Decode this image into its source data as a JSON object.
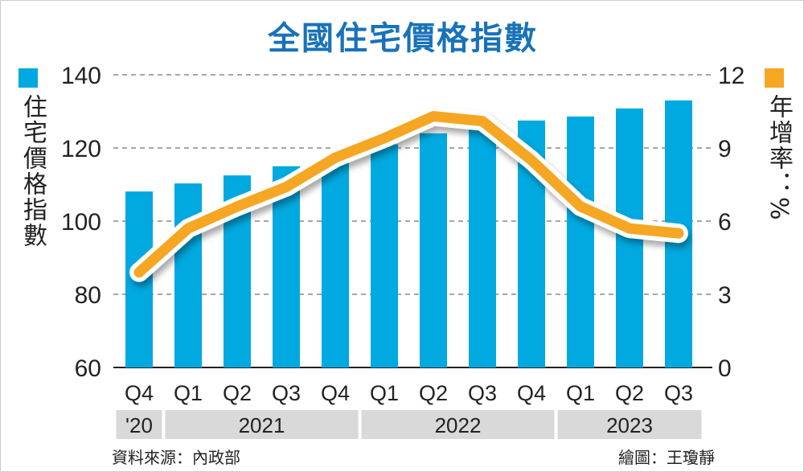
{
  "chart_data": {
    "type": "bar+line",
    "title": "全國住宅價格指數",
    "categories": [
      "Q4",
      "Q1",
      "Q2",
      "Q3",
      "Q4",
      "Q1",
      "Q2",
      "Q3",
      "Q4",
      "Q1",
      "Q2",
      "Q3"
    ],
    "years": [
      {
        "label": "'20",
        "span": 1
      },
      {
        "label": "2021",
        "span": 4
      },
      {
        "label": "2022",
        "span": 4
      },
      {
        "label": "2023",
        "span": 3
      }
    ],
    "series": [
      {
        "name": "住宅價格指數",
        "type": "bar",
        "axis": "left",
        "color": "#00a9e0",
        "values": [
          108.1,
          110.3,
          112.5,
          115,
          118,
          121,
          124,
          125.5,
          127.5,
          128.6,
          130.8,
          133
        ]
      },
      {
        "name": "年增率：%",
        "type": "line",
        "axis": "right",
        "color": "#f5a623",
        "values": [
          3.9,
          5.7,
          6.6,
          7.4,
          8.6,
          9.4,
          10.3,
          10.1,
          8.5,
          6.6,
          5.7,
          5.5
        ]
      }
    ],
    "left_axis": {
      "label": "住宅價格指數",
      "ylim": [
        60,
        140
      ],
      "ticks": [
        60,
        80,
        100,
        120,
        140
      ]
    },
    "right_axis": {
      "label": "年增率：%",
      "ylim": [
        0,
        12
      ],
      "ticks": [
        0,
        3,
        6,
        9,
        12
      ]
    },
    "grid": true
  },
  "source": "資料來源：內政部",
  "credit": "繪圖：王瓊靜"
}
